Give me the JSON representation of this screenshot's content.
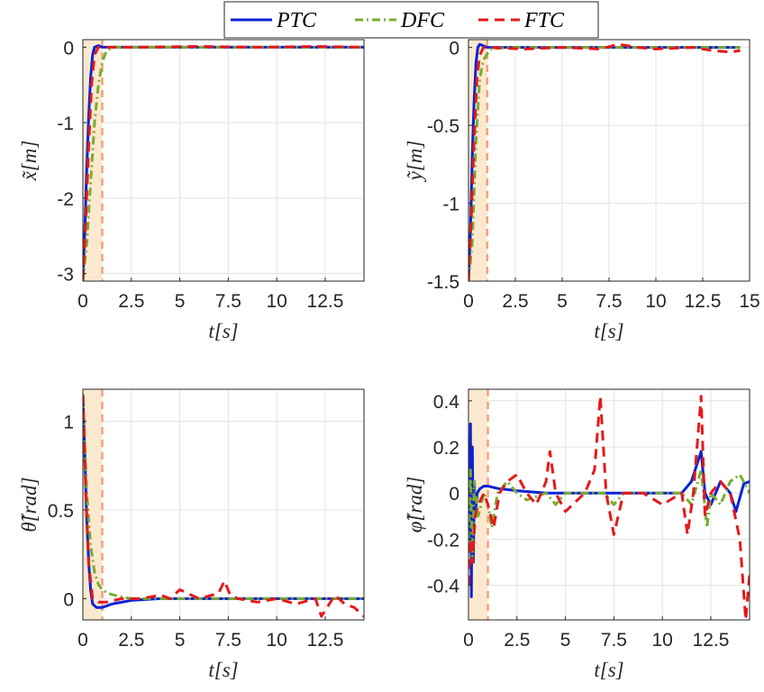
{
  "legend": {
    "position": "top-center",
    "entries": [
      {
        "label": "PTC",
        "color": "#0b22d6",
        "style": "solid"
      },
      {
        "label": "DFC",
        "color": "#77ac30",
        "style": "dashdot"
      },
      {
        "label": "FTC",
        "color": "#e31a1c",
        "style": "dashed"
      }
    ]
  },
  "colors": {
    "ptc": "#0b22d6",
    "dfc": "#77ac30",
    "ftc": "#e31a1c",
    "shade": "#fbe9cf",
    "vline": "#f2a37c",
    "grid": "#e3e3e3",
    "axis": "#262626"
  },
  "chart_data": [
    {
      "type": "line",
      "ylabel": "x̃[m]",
      "xlabel": "t[s]",
      "xlim": [
        0,
        14.5
      ],
      "ylim": [
        -3.1,
        0.1
      ],
      "xticks": [
        0,
        2.5,
        5,
        7.5,
        10,
        12.5
      ],
      "xtick_labels": [
        "0",
        "2.5",
        "5",
        "7.5",
        "10",
        "12.5"
      ],
      "yticks": [
        0,
        -1,
        -2,
        -3
      ],
      "ytick_labels": [
        "0",
        "-1",
        "-2",
        "-3"
      ],
      "shaded_interval": [
        0,
        1
      ],
      "series": [
        {
          "name": "PTC",
          "x": [
            0,
            0.1,
            0.2,
            0.3,
            0.4,
            0.5,
            0.6,
            0.8,
            1.0,
            2,
            4,
            8,
            12,
            14.5
          ],
          "y": [
            -3.1,
            -2.4,
            -1.6,
            -0.9,
            -0.4,
            -0.1,
            0.0,
            0.02,
            0.0,
            0.0,
            0.0,
            0.0,
            0.0,
            0.0
          ]
        },
        {
          "name": "DFC",
          "x": [
            0,
            0.2,
            0.4,
            0.6,
            0.8,
            1.0,
            1.2,
            1.5,
            3,
            8,
            14.5
          ],
          "y": [
            -3.1,
            -2.6,
            -1.8,
            -1.0,
            -0.5,
            -0.2,
            -0.06,
            0.0,
            0.0,
            0.0,
            0.0
          ]
        },
        {
          "name": "FTC",
          "x": [
            0,
            0.15,
            0.3,
            0.45,
            0.6,
            0.8,
            1.0,
            3,
            6,
            9,
            12,
            14.5
          ],
          "y": [
            -3.1,
            -2.3,
            -1.3,
            -0.5,
            -0.1,
            0.0,
            0.0,
            0.0,
            0.01,
            0.0,
            0.01,
            0.0
          ]
        }
      ]
    },
    {
      "type": "line",
      "ylabel": "ỹ[m]",
      "xlabel": "t[s]",
      "xlim": [
        0,
        15
      ],
      "ylim": [
        -1.5,
        0.05
      ],
      "xticks": [
        0,
        2.5,
        5,
        7.5,
        10,
        12.5,
        15
      ],
      "xtick_labels": [
        "0",
        "2.5",
        "5",
        "7.5",
        "10",
        "12.5",
        "15"
      ],
      "yticks": [
        0,
        -0.5,
        -1,
        -1.5
      ],
      "ytick_labels": [
        "0",
        "-0.5",
        "-1",
        "-1.5"
      ],
      "shaded_interval": [
        0,
        1
      ],
      "series": [
        {
          "name": "PTC",
          "x": [
            0,
            0.1,
            0.2,
            0.3,
            0.4,
            0.5,
            0.6,
            0.8,
            1.0,
            3,
            8,
            14.5
          ],
          "y": [
            -1.5,
            -1.2,
            -0.7,
            -0.35,
            -0.1,
            0.0,
            0.02,
            0.01,
            0.0,
            0.0,
            0.0,
            0.0
          ]
        },
        {
          "name": "DFC",
          "x": [
            0,
            0.2,
            0.4,
            0.6,
            0.8,
            1.0,
            1.2,
            2,
            8,
            14.5
          ],
          "y": [
            -1.5,
            -1.25,
            -0.6,
            -0.2,
            -0.08,
            -0.04,
            -0.01,
            0.0,
            0.0,
            0.0
          ]
        },
        {
          "name": "FTC",
          "x": [
            0,
            0.15,
            0.3,
            0.45,
            0.6,
            0.8,
            1.0,
            3,
            5,
            7,
            8,
            9,
            10,
            12,
            13,
            14,
            14.5
          ],
          "y": [
            -1.5,
            -1.1,
            -0.6,
            -0.2,
            -0.05,
            0.0,
            0.0,
            -0.01,
            0.0,
            -0.01,
            0.02,
            0.0,
            -0.01,
            0.0,
            -0.02,
            -0.03,
            -0.02
          ]
        }
      ]
    },
    {
      "type": "line",
      "ylabel": "θ̃[rad]",
      "xlabel": "t[s]",
      "xlim": [
        0,
        14.5
      ],
      "ylim": [
        -0.12,
        1.18
      ],
      "xticks": [
        0,
        2.5,
        5,
        7.5,
        10,
        12.5
      ],
      "xtick_labels": [
        "0",
        "2.5",
        "5",
        "7.5",
        "10",
        "12.5"
      ],
      "yticks": [
        1,
        0.5,
        0
      ],
      "ytick_labels": [
        "1",
        "0.5",
        "0"
      ],
      "shaded_interval": [
        0,
        1
      ],
      "series": [
        {
          "name": "PTC",
          "x": [
            0,
            0.1,
            0.2,
            0.3,
            0.4,
            0.5,
            0.7,
            1.0,
            1.5,
            2.5,
            4,
            8,
            12,
            14.5
          ],
          "y": [
            1.15,
            0.8,
            0.45,
            0.2,
            0.05,
            -0.03,
            -0.05,
            -0.05,
            -0.03,
            -0.01,
            0.0,
            0.0,
            0.0,
            0.0
          ]
        },
        {
          "name": "DFC",
          "x": [
            0,
            0.2,
            0.4,
            0.6,
            0.8,
            1.0,
            1.3,
            1.6,
            2,
            2.5,
            4,
            8,
            14.5
          ],
          "y": [
            1.15,
            0.6,
            0.3,
            0.15,
            0.08,
            0.05,
            0.03,
            0.02,
            0.01,
            0.0,
            0.0,
            0.0,
            0.0
          ]
        },
        {
          "name": "FTC",
          "x": [
            0,
            0.15,
            0.3,
            0.5,
            0.8,
            1.2,
            2,
            3,
            4,
            4.5,
            5,
            6,
            7,
            7.3,
            7.6,
            8,
            9,
            10,
            11,
            12,
            12.3,
            12.6,
            13,
            13.5,
            14,
            14.5
          ],
          "y": [
            1.15,
            0.6,
            0.2,
            0.0,
            -0.02,
            -0.02,
            0.0,
            0.0,
            0.02,
            0.0,
            0.05,
            0.0,
            0.03,
            0.1,
            0.02,
            0.0,
            -0.02,
            0.0,
            -0.03,
            0.0,
            -0.1,
            -0.05,
            0.02,
            -0.03,
            -0.05,
            -0.1
          ]
        }
      ]
    },
    {
      "type": "line",
      "ylabel": "φ̃[rad]",
      "xlabel": "t[s]",
      "xlim": [
        0,
        14.5
      ],
      "ylim": [
        -0.55,
        0.45
      ],
      "xticks": [
        0,
        2.5,
        5,
        7.5,
        10,
        12.5
      ],
      "xtick_labels": [
        "0",
        "2.5",
        "5",
        "7.5",
        "10",
        "12.5"
      ],
      "yticks": [
        0.4,
        0.2,
        0,
        -0.2,
        -0.4
      ],
      "ytick_labels": [
        "0.4",
        "0.2",
        "0",
        "-0.2",
        "-0.4"
      ],
      "shaded_interval": [
        0,
        1
      ],
      "series": [
        {
          "name": "PTC",
          "x": [
            0,
            0.05,
            0.1,
            0.15,
            0.2,
            0.25,
            0.3,
            0.35,
            0.45,
            0.6,
            0.8,
            1.0,
            1.5,
            2.5,
            4,
            6,
            8,
            10,
            11,
            11.5,
            12,
            12.2,
            12.5,
            13,
            13.5,
            13.8,
            14.2,
            14.5
          ],
          "y": [
            0.0,
            -0.2,
            0.3,
            -0.45,
            0.2,
            -0.3,
            0.05,
            -0.1,
            0.0,
            0.02,
            0.03,
            0.03,
            0.02,
            0.01,
            0.0,
            0.0,
            0.0,
            0.0,
            0.0,
            0.05,
            0.18,
            0.0,
            -0.05,
            0.05,
            0.0,
            -0.08,
            0.04,
            0.05
          ]
        },
        {
          "name": "DFC",
          "x": [
            0,
            0.1,
            0.2,
            0.3,
            0.5,
            0.8,
            1.0,
            1.2,
            1.5,
            2,
            2.5,
            3,
            4,
            4.5,
            5,
            6,
            7,
            7.5,
            8,
            9,
            10,
            11,
            11.5,
            12,
            12.3,
            12.5,
            13,
            13.5,
            14,
            14.5
          ],
          "y": [
            -0.2,
            0.1,
            -0.3,
            0.05,
            -0.1,
            0.0,
            -0.05,
            -0.15,
            0.0,
            0.05,
            0.0,
            -0.03,
            0.0,
            -0.05,
            0.0,
            0.0,
            0.0,
            -0.05,
            0.0,
            0.0,
            0.0,
            0.0,
            -0.05,
            0.1,
            -0.15,
            0.0,
            -0.05,
            0.05,
            0.08,
            0.0
          ]
        },
        {
          "name": "FTC",
          "x": [
            0,
            0.1,
            0.2,
            0.35,
            0.5,
            0.8,
            1.0,
            1.3,
            1.6,
            2,
            2.5,
            3,
            3.5,
            4,
            4.2,
            4.5,
            5,
            6,
            6.5,
            6.8,
            7.1,
            7.5,
            8,
            9,
            10,
            11,
            11.3,
            11.6,
            12,
            12.2,
            12.5,
            13,
            13.5,
            14,
            14.3,
            14.5
          ],
          "y": [
            -0.4,
            -0.2,
            -0.3,
            -0.1,
            -0.05,
            0.0,
            -0.05,
            -0.15,
            0.0,
            0.05,
            0.08,
            0.0,
            -0.05,
            0.05,
            0.18,
            0.0,
            -0.08,
            0.0,
            0.1,
            0.42,
            0.0,
            -0.18,
            0.0,
            0.0,
            -0.05,
            0.0,
            -0.18,
            0.0,
            0.42,
            -0.1,
            0.0,
            0.05,
            0.0,
            -0.2,
            -0.55,
            -0.35
          ]
        }
      ]
    }
  ]
}
